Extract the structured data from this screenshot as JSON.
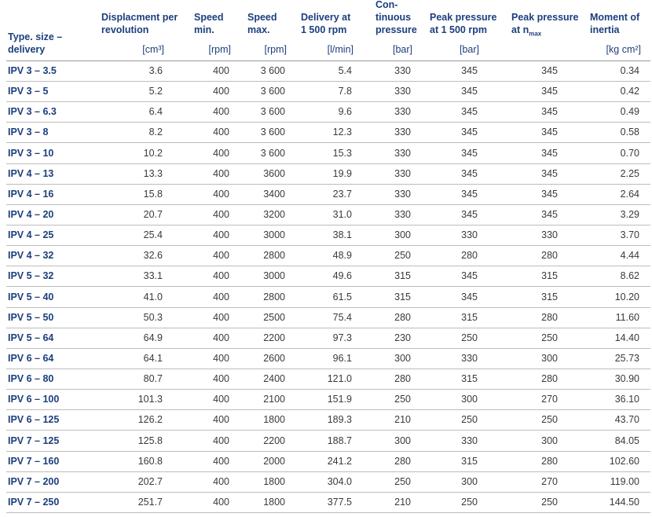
{
  "table": {
    "headers": [
      {
        "lines": [
          "Type. size –",
          "delivery"
        ]
      },
      {
        "lines": [
          "Displacment per",
          "revolution"
        ],
        "unit": "[cm³]"
      },
      {
        "lines": [
          "Speed",
          "min."
        ],
        "unit": "[rpm]"
      },
      {
        "lines": [
          "Speed",
          "max."
        ],
        "unit": "[rpm]"
      },
      {
        "lines": [
          "Delivery at",
          "1 500 rpm"
        ],
        "unit": "[l/min]"
      },
      {
        "lines": [
          "Con-",
          "tinuous",
          "pressure"
        ],
        "unit": "[bar]"
      },
      {
        "lines": [
          "Peak pressure",
          "at 1 500 rpm"
        ],
        "unit": "[bar]"
      },
      {
        "lines": [
          "Peak pressure",
          "at n"
        ],
        "subscript": "max"
      },
      {
        "lines": [
          "Moment of",
          "inertia"
        ],
        "unit": "[kg cm²]"
      }
    ],
    "rows": [
      [
        "IPV 3 – 3.5",
        "3.6",
        "400",
        "3 600",
        "5.4",
        "330",
        "345",
        "345",
        "0.34"
      ],
      [
        "IPV 3 – 5",
        "5.2",
        "400",
        "3 600",
        "7.8",
        "330",
        "345",
        "345",
        "0.42"
      ],
      [
        "IPV 3 – 6.3",
        "6.4",
        "400",
        "3 600",
        "9.6",
        "330",
        "345",
        "345",
        "0.49"
      ],
      [
        "IPV 3 – 8",
        "8.2",
        "400",
        "3 600",
        "12.3",
        "330",
        "345",
        "345",
        "0.58"
      ],
      [
        "IPV 3 – 10",
        "10.2",
        "400",
        "3 600",
        "15.3",
        "330",
        "345",
        "345",
        "0.70"
      ],
      [
        "IPV 4 – 13",
        "13.3",
        "400",
        "3600",
        "19.9",
        "330",
        "345",
        "345",
        "2.25"
      ],
      [
        "IPV 4 – 16",
        "15.8",
        "400",
        "3400",
        "23.7",
        "330",
        "345",
        "345",
        "2.64"
      ],
      [
        "IPV 4 – 20",
        "20.7",
        "400",
        "3200",
        "31.0",
        "330",
        "345",
        "345",
        "3.29"
      ],
      [
        "IPV 4 – 25",
        "25.4",
        "400",
        "3000",
        "38.1",
        "300",
        "330",
        "330",
        "3.70"
      ],
      [
        "IPV 4 – 32",
        "32.6",
        "400",
        "2800",
        "48.9",
        "250",
        "280",
        "280",
        "4.44"
      ],
      [
        "IPV 5 – 32",
        "33.1",
        "400",
        "3000",
        "49.6",
        "315",
        "345",
        "315",
        "8.62"
      ],
      [
        "IPV 5 – 40",
        "41.0",
        "400",
        "2800",
        "61.5",
        "315",
        "345",
        "315",
        "10.20"
      ],
      [
        "IPV 5 – 50",
        "50.3",
        "400",
        "2500",
        "75.4",
        "280",
        "315",
        "280",
        "11.60"
      ],
      [
        "IPV 5 – 64",
        "64.9",
        "400",
        "2200",
        "97.3",
        "230",
        "250",
        "250",
        "14.40"
      ],
      [
        "IPV 6 – 64",
        "64.1",
        "400",
        "2600",
        "96.1",
        "300",
        "330",
        "300",
        "25.73"
      ],
      [
        "IPV 6 – 80",
        "80.7",
        "400",
        "2400",
        "121.0",
        "280",
        "315",
        "280",
        "30.90"
      ],
      [
        "IPV 6 – 100",
        "101.3",
        "400",
        "2100",
        "151.9",
        "250",
        "300",
        "270",
        "36.10"
      ],
      [
        "IPV 6 – 125",
        "126.2",
        "400",
        "1800",
        "189.3",
        "210",
        "250",
        "250",
        "43.70"
      ],
      [
        "IPV 7 – 125",
        "125.8",
        "400",
        "2200",
        "188.7",
        "300",
        "330",
        "300",
        "84.05"
      ],
      [
        "IPV 7 – 160",
        "160.8",
        "400",
        "2000",
        "241.2",
        "280",
        "315",
        "280",
        "102.60"
      ],
      [
        "IPV 7 – 200",
        "202.7",
        "400",
        "1800",
        "304.0",
        "250",
        "300",
        "270",
        "119.00"
      ],
      [
        "IPV 7 – 250",
        "251.7",
        "400",
        "1800",
        "377.5",
        "210",
        "250",
        "250",
        "144.50"
      ]
    ]
  }
}
